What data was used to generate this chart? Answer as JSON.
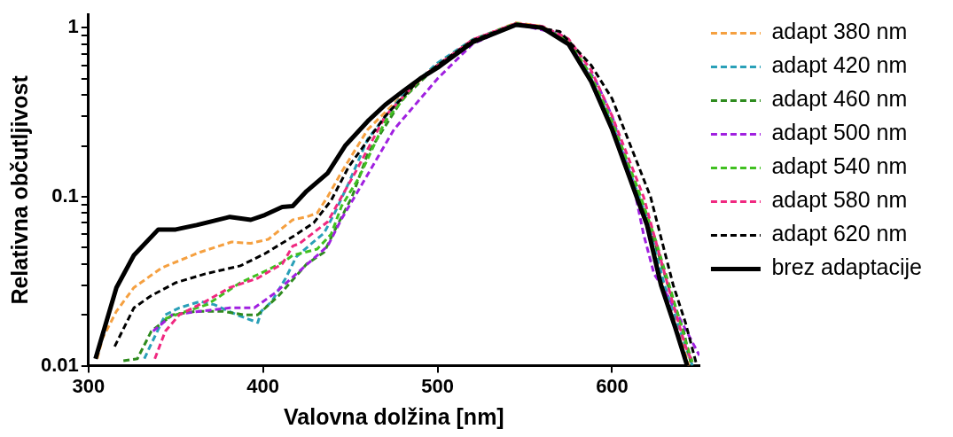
{
  "chart_data": {
    "type": "line",
    "xlabel": "Valovna dolžina [nm]",
    "ylabel": "Relativna občutljivost",
    "log": "y",
    "grid": false,
    "legend": "right",
    "marker": "none",
    "xlim": [
      300,
      650
    ],
    "xticks": [
      300,
      400,
      500,
      600
    ],
    "ylim": [
      0.01,
      1.2
    ],
    "yticks": [
      0.01,
      {
        "value": 0.02,
        "label": null
      },
      {
        "value": 0.03,
        "label": null
      },
      {
        "value": 0.04,
        "label": null
      },
      {
        "value": 0.05,
        "label": null
      },
      {
        "value": 0.06,
        "label": null
      },
      {
        "value": 0.07,
        "label": null
      },
      {
        "value": 0.08,
        "label": null
      },
      {
        "value": 0.09,
        "label": null
      },
      0.1,
      {
        "value": 0.2,
        "label": null
      },
      {
        "value": 0.3,
        "label": null
      },
      {
        "value": 0.4,
        "label": null
      },
      {
        "value": 0.5,
        "label": null
      },
      {
        "value": 0.6,
        "label": null
      },
      {
        "value": 0.7,
        "label": null
      },
      {
        "value": 0.8,
        "label": null
      },
      {
        "value": 0.9,
        "label": null
      },
      1
    ],
    "series": [
      {
        "name": "adapt 380 nm",
        "color": "#f5a040",
        "line_style": "dashed",
        "x": [
          305,
          308,
          316,
          326,
          342,
          364,
          382,
          393,
          403,
          417,
          425,
          431,
          437,
          445,
          460,
          480,
          500,
          520,
          545,
          560,
          575,
          588,
          600,
          614,
          620,
          630,
          638,
          644
        ],
        "values": [
          0.011,
          0.0145,
          0.021,
          0.029,
          0.038,
          0.047,
          0.054,
          0.053,
          0.056,
          0.073,
          0.076,
          0.08,
          0.1,
          0.14,
          0.25,
          0.4,
          0.6,
          0.85,
          1.07,
          1.02,
          0.82,
          0.5,
          0.26,
          0.1,
          0.07,
          0.028,
          0.016,
          0.01
        ]
      },
      {
        "name": "adapt 420 nm",
        "color": "#2aa0b8",
        "line_style": "dashed",
        "x": [
          332,
          336,
          344,
          352,
          364,
          372,
          385,
          397,
          399,
          405,
          413,
          419,
          427,
          435,
          441,
          449,
          460,
          480,
          500,
          520,
          545,
          560,
          575,
          588,
          600,
          614,
          620,
          630,
          640,
          646
        ],
        "values": [
          0.011,
          0.0135,
          0.02,
          0.022,
          0.024,
          0.023,
          0.02,
          0.018,
          0.021,
          0.024,
          0.033,
          0.044,
          0.052,
          0.061,
          0.08,
          0.12,
          0.22,
          0.4,
          0.62,
          0.85,
          1.06,
          1.0,
          0.83,
          0.5,
          0.27,
          0.11,
          0.075,
          0.03,
          0.015,
          0.01
        ]
      },
      {
        "name": "adapt 460 nm",
        "color": "#2e8b1e",
        "line_style": "dashed",
        "x": [
          320,
          328,
          336,
          348,
          362,
          377,
          389,
          397,
          409,
          425,
          435,
          441,
          451,
          460,
          480,
          500,
          520,
          545,
          560,
          575,
          588,
          600,
          614,
          622,
          632,
          641,
          645
        ],
        "values": [
          0.0107,
          0.011,
          0.016,
          0.02,
          0.021,
          0.021,
          0.02,
          0.02,
          0.026,
          0.04,
          0.047,
          0.063,
          0.1,
          0.18,
          0.38,
          0.6,
          0.84,
          1.06,
          1.0,
          0.83,
          0.5,
          0.27,
          0.11,
          0.065,
          0.03,
          0.016,
          0.0105
        ]
      },
      {
        "name": "adapt 500 nm",
        "color": "#a020e0",
        "line_style": "dashed",
        "x": [
          337,
          348,
          364,
          381,
          395,
          407,
          423,
          437,
          445,
          457,
          475,
          500,
          520,
          545,
          570,
          590,
          600,
          612,
          618,
          624,
          630,
          640,
          650
        ],
        "values": [
          0.016,
          0.02,
          0.021,
          0.022,
          0.022,
          0.027,
          0.038,
          0.051,
          0.074,
          0.12,
          0.25,
          0.5,
          0.8,
          1.05,
          0.92,
          0.5,
          0.3,
          0.12,
          0.06,
          0.035,
          0.028,
          0.018,
          0.0115
        ]
      },
      {
        "name": "adapt 540 nm",
        "color": "#40c020",
        "line_style": "dashed",
        "x": [
          344,
          356,
          368,
          387,
          403,
          413,
          417,
          431,
          439,
          445,
          455,
          470,
          490,
          500,
          520,
          545,
          560,
          575,
          588,
          600,
          615,
          625,
          635,
          642,
          646
        ],
        "values": [
          0.019,
          0.021,
          0.023,
          0.031,
          0.037,
          0.042,
          0.045,
          0.049,
          0.06,
          0.088,
          0.13,
          0.28,
          0.5,
          0.6,
          0.84,
          1.06,
          1.0,
          0.84,
          0.52,
          0.28,
          0.11,
          0.055,
          0.025,
          0.014,
          0.0105
        ]
      },
      {
        "name": "adapt 580 nm",
        "color": "#f02880",
        "line_style": "dashed",
        "x": [
          338,
          344,
          352,
          367,
          381,
          397,
          411,
          417,
          421,
          437,
          445,
          453,
          470,
          490,
          500,
          520,
          545,
          560,
          575,
          588,
          600,
          618,
          626,
          634,
          642,
          646
        ],
        "values": [
          0.011,
          0.016,
          0.02,
          0.024,
          0.029,
          0.033,
          0.04,
          0.051,
          0.053,
          0.071,
          0.1,
          0.14,
          0.3,
          0.5,
          0.6,
          0.85,
          1.06,
          1.02,
          0.86,
          0.56,
          0.3,
          0.1,
          0.05,
          0.025,
          0.013,
          0.0105
        ]
      },
      {
        "name": "adapt 620 nm",
        "color": "#000000",
        "line_style": "dashed",
        "x": [
          315,
          326,
          336,
          350,
          367,
          387,
          401,
          417,
          429,
          439,
          449,
          470,
          490,
          500,
          520,
          545,
          570,
          588,
          600,
          622,
          635,
          642,
          648
        ],
        "values": [
          0.013,
          0.022,
          0.026,
          0.031,
          0.035,
          0.039,
          0.046,
          0.058,
          0.07,
          0.095,
          0.15,
          0.3,
          0.5,
          0.6,
          0.84,
          1.05,
          0.95,
          0.6,
          0.38,
          0.1,
          0.03,
          0.018,
          0.0105
        ]
      },
      {
        "name": "brez adaptacije",
        "color": "#000000",
        "line_style": "solid",
        "x": [
          304,
          316,
          326,
          340,
          350,
          362,
          381,
          393,
          401,
          411,
          417,
          425,
          437,
          447,
          460,
          470,
          480,
          490,
          500,
          520,
          545,
          560,
          575,
          588,
          600,
          614,
          620,
          628,
          636,
          643
        ],
        "values": [
          0.011,
          0.029,
          0.045,
          0.064,
          0.064,
          0.068,
          0.076,
          0.073,
          0.078,
          0.087,
          0.088,
          0.108,
          0.138,
          0.2,
          0.28,
          0.35,
          0.42,
          0.5,
          0.58,
          0.82,
          1.04,
          1.0,
          0.8,
          0.48,
          0.25,
          0.1,
          0.068,
          0.03,
          0.017,
          0.01
        ]
      }
    ]
  }
}
